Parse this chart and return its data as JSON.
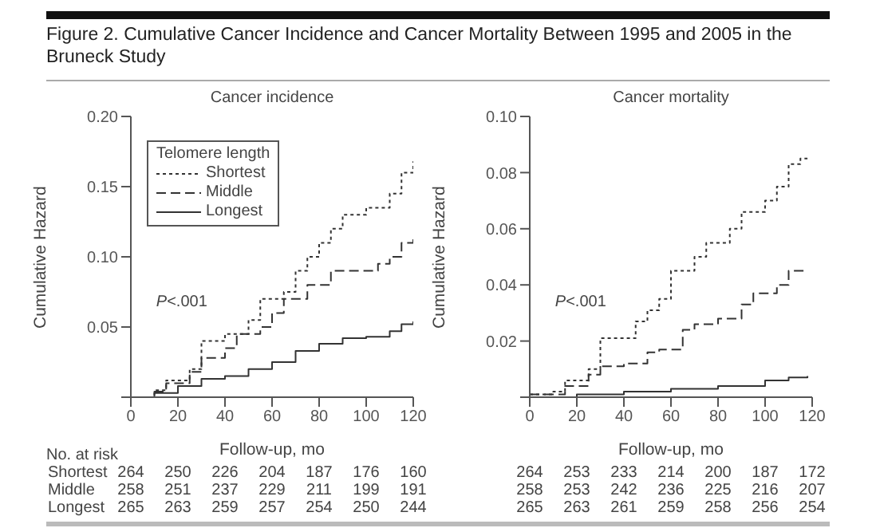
{
  "chart_data": [
    {
      "type": "step",
      "title": "Figure 2. Cumulative Cancer Incidence and Cancer Mortality Between 1995 and 2005 in the Bruneck Study",
      "subtitle": "Cancer incidence",
      "xlabel": "Follow-up, mo",
      "ylabel": "Cumulative Hazard",
      "legend_title": "Telomere length",
      "legend": "top left",
      "marker": "none",
      "xlim": [
        0,
        120
      ],
      "xticks": [
        0,
        20,
        40,
        60,
        80,
        100,
        120
      ],
      "ylim": [
        0,
        0.2
      ],
      "yticks": [
        {
          "value": 0,
          "label": null
        },
        0.05,
        {
          "value": 0.1,
          "label": "0.10"
        },
        0.15,
        {
          "value": 0.2,
          "label": "0.20"
        }
      ],
      "series": [
        {
          "name": "Shortest",
          "color": "#333333",
          "line_style": "dotted",
          "x": [
            0,
            10,
            15,
            25,
            30,
            40,
            50,
            55,
            65,
            70,
            75,
            80,
            85,
            90,
            100,
            110,
            115,
            120
          ],
          "values": [
            0,
            0.005,
            0.012,
            0.02,
            0.04,
            0.045,
            0.055,
            0.07,
            0.075,
            0.09,
            0.1,
            0.11,
            0.12,
            0.13,
            0.135,
            0.145,
            0.16,
            0.168
          ]
        },
        {
          "name": "Middle",
          "color": "#333333",
          "line_style": "dashed",
          "x": [
            0,
            10,
            15,
            25,
            30,
            40,
            45,
            55,
            60,
            65,
            75,
            85,
            100,
            105,
            110,
            115,
            120
          ],
          "values": [
            0,
            0.004,
            0.01,
            0.018,
            0.028,
            0.035,
            0.045,
            0.05,
            0.06,
            0.07,
            0.08,
            0.09,
            0.09,
            0.095,
            0.1,
            0.11,
            0.115
          ]
        },
        {
          "name": "Longest",
          "color": "#333333",
          "line_style": "solid",
          "x": [
            0,
            10,
            20,
            30,
            40,
            50,
            60,
            70,
            80,
            90,
            100,
            110,
            115,
            120
          ],
          "values": [
            0,
            0.003,
            0.008,
            0.013,
            0.015,
            0.02,
            0.025,
            0.033,
            0.038,
            0.042,
            0.043,
            0.047,
            0.052,
            0.054
          ]
        }
      ],
      "annotations": [
        "P<.001",
        "No. at risk",
        "Shortest",
        "264",
        "250",
        "226",
        "204",
        "187",
        "176",
        "160",
        "Middle",
        "258",
        "251",
        "237",
        "229",
        "211",
        "199",
        "191",
        "Longest",
        "265",
        "263",
        "259",
        "257",
        "254",
        "250",
        "244"
      ]
    },
    {
      "type": "step",
      "subtitle": "Cancer mortality",
      "xlabel": "Follow-up, mo",
      "ylabel": "Cumulative Hazard",
      "marker": "none",
      "xlim": [
        0,
        120
      ],
      "xticks": [
        0,
        20,
        40,
        60,
        80,
        100,
        120
      ],
      "ylim": [
        0,
        0.1
      ],
      "yticks": [
        {
          "value": 0,
          "label": null
        },
        0.02,
        0.04,
        0.06,
        0.08,
        {
          "value": 0.1,
          "label": "0.10"
        }
      ],
      "series": [
        {
          "color": "#333333",
          "line_style": "dotted",
          "x": [
            0,
            10,
            15,
            25,
            30,
            40,
            45,
            50,
            55,
            60,
            70,
            75,
            85,
            90,
            100,
            105,
            110,
            115,
            118
          ],
          "values": [
            0.001,
            0.002,
            0.006,
            0.01,
            0.021,
            0.021,
            0.027,
            0.031,
            0.035,
            0.045,
            0.05,
            0.055,
            0.06,
            0.066,
            0.07,
            0.075,
            0.083,
            0.085,
            0.085
          ]
        },
        {
          "color": "#333333",
          "line_style": "dashed",
          "x": [
            0,
            10,
            15,
            25,
            30,
            40,
            50,
            55,
            65,
            70,
            80,
            90,
            95,
            105,
            110,
            118
          ],
          "values": [
            0.001,
            0.001,
            0.004,
            0.008,
            0.011,
            0.012,
            0.016,
            0.017,
            0.024,
            0.026,
            0.028,
            0.033,
            0.037,
            0.04,
            0.045,
            0.045
          ]
        },
        {
          "color": "#333333",
          "line_style": "solid",
          "x": [
            0,
            20,
            40,
            60,
            80,
            100,
            110,
            118
          ],
          "values": [
            0,
            0.001,
            0.002,
            0.003,
            0.004,
            0.006,
            0.007,
            0.0075
          ]
        }
      ],
      "annotations": [
        "P<.001",
        "264",
        "253",
        "233",
        "214",
        "200",
        "187",
        "172",
        "258",
        "253",
        "242",
        "236",
        "225",
        "216",
        "207",
        "265",
        "263",
        "261",
        "259",
        "258",
        "256",
        "254"
      ]
    }
  ]
}
